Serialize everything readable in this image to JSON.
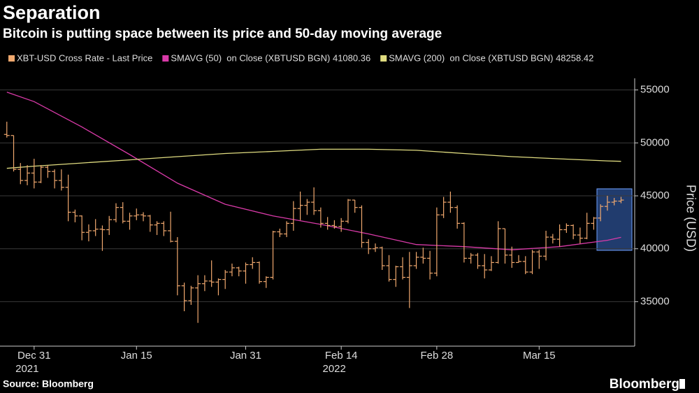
{
  "chart_data": {
    "type": "ohlc",
    "title": "Separation",
    "subtitle": "Bitcoin is putting space between its price and 50-day moving average",
    "source": "Source: Bloomberg",
    "logo": "Bloomberg",
    "y_label": "Price (USD)",
    "xlim": [
      "2021-12-26",
      "2022-03-29"
    ],
    "xticks": [
      {
        "value": "2021-12-31",
        "label": "Dec 31"
      },
      {
        "value": "2022-01-15",
        "label": "Jan 15"
      },
      {
        "value": "2022-01-31",
        "label": "Jan 31"
      },
      {
        "value": "2022-02-14",
        "label": "Feb 14"
      },
      {
        "value": "2022-02-28",
        "label": "Feb 28"
      },
      {
        "value": "2022-03-15",
        "label": "Mar 15"
      }
    ],
    "year_labels": [
      {
        "value": "2021-12-31",
        "label": "2021"
      },
      {
        "value": "2022-02-14",
        "label": "2022"
      }
    ],
    "ylim": [
      30800,
      56100
    ],
    "yticks": [
      35000,
      40000,
      45000,
      50000,
      55000
    ],
    "grid": true,
    "series": [
      {
        "name": "XBT-USD Cross Rate - Last Price",
        "color": "#f0a86e",
        "data": [
          {
            "x": "2021-12-27",
            "open": 50800,
            "high": 52000,
            "low": 50500,
            "close": 50700
          },
          {
            "x": "2021-12-28",
            "open": 50700,
            "high": 50700,
            "low": 47300,
            "close": 47500
          },
          {
            "x": "2021-12-29",
            "open": 47500,
            "high": 48100,
            "low": 46100,
            "close": 46450
          },
          {
            "x": "2021-12-30",
            "open": 46450,
            "high": 47900,
            "low": 46000,
            "close": 47150
          },
          {
            "x": "2021-12-31",
            "open": 47150,
            "high": 48500,
            "low": 45700,
            "close": 46300
          },
          {
            "x": "2022-01-01",
            "open": 46300,
            "high": 47900,
            "low": 46200,
            "close": 47700
          },
          {
            "x": "2022-01-02",
            "open": 47700,
            "high": 47900,
            "low": 46700,
            "close": 47300
          },
          {
            "x": "2022-01-03",
            "open": 47300,
            "high": 47500,
            "low": 45700,
            "close": 46450
          },
          {
            "x": "2022-01-04",
            "open": 46450,
            "high": 47500,
            "low": 45500,
            "close": 45800
          },
          {
            "x": "2022-01-05",
            "open": 45800,
            "high": 47000,
            "low": 42600,
            "close": 43450
          },
          {
            "x": "2022-01-06",
            "open": 43450,
            "high": 43700,
            "low": 42500,
            "close": 43100
          },
          {
            "x": "2022-01-07",
            "open": 43100,
            "high": 43150,
            "low": 40800,
            "close": 41550
          },
          {
            "x": "2022-01-08",
            "open": 41550,
            "high": 42300,
            "low": 40700,
            "close": 41700
          },
          {
            "x": "2022-01-09",
            "open": 41700,
            "high": 42800,
            "low": 41200,
            "close": 41850
          },
          {
            "x": "2022-01-10",
            "open": 41850,
            "high": 42200,
            "low": 39800,
            "close": 41800
          },
          {
            "x": "2022-01-11",
            "open": 41800,
            "high": 43100,
            "low": 41300,
            "close": 42750
          },
          {
            "x": "2022-01-12",
            "open": 42750,
            "high": 44300,
            "low": 42500,
            "close": 43900
          },
          {
            "x": "2022-01-13",
            "open": 43900,
            "high": 44400,
            "low": 42400,
            "close": 42600
          },
          {
            "x": "2022-01-14",
            "open": 42600,
            "high": 43400,
            "low": 41800,
            "close": 43100
          },
          {
            "x": "2022-01-15",
            "open": 43100,
            "high": 43800,
            "low": 42700,
            "close": 43200
          },
          {
            "x": "2022-01-16",
            "open": 43200,
            "high": 43450,
            "low": 42600,
            "close": 43100
          },
          {
            "x": "2022-01-17",
            "open": 43100,
            "high": 43200,
            "low": 41600,
            "close": 42250
          },
          {
            "x": "2022-01-18",
            "open": 42250,
            "high": 42600,
            "low": 41300,
            "close": 42400
          },
          {
            "x": "2022-01-19",
            "open": 42400,
            "high": 42600,
            "low": 41200,
            "close": 41700
          },
          {
            "x": "2022-01-20",
            "open": 41700,
            "high": 43500,
            "low": 40600,
            "close": 40700
          },
          {
            "x": "2022-01-21",
            "open": 40700,
            "high": 41100,
            "low": 35600,
            "close": 36500
          },
          {
            "x": "2022-01-22",
            "open": 36500,
            "high": 36800,
            "low": 34100,
            "close": 35100
          },
          {
            "x": "2022-01-23",
            "open": 35100,
            "high": 36500,
            "low": 34700,
            "close": 36300
          },
          {
            "x": "2022-01-24",
            "open": 36300,
            "high": 37500,
            "low": 33000,
            "close": 36700
          },
          {
            "x": "2022-01-25",
            "open": 36700,
            "high": 37500,
            "low": 36000,
            "close": 36950
          },
          {
            "x": "2022-01-26",
            "open": 36950,
            "high": 38900,
            "low": 36400,
            "close": 36850
          },
          {
            "x": "2022-01-27",
            "open": 36850,
            "high": 37200,
            "low": 35600,
            "close": 37100
          },
          {
            "x": "2022-01-28",
            "open": 37100,
            "high": 38000,
            "low": 36200,
            "close": 37800
          },
          {
            "x": "2022-01-29",
            "open": 37800,
            "high": 38600,
            "low": 37400,
            "close": 38200
          },
          {
            "x": "2022-01-30",
            "open": 38200,
            "high": 38300,
            "low": 37400,
            "close": 37900
          },
          {
            "x": "2022-01-31",
            "open": 37900,
            "high": 38700,
            "low": 36700,
            "close": 38500
          },
          {
            "x": "2022-02-01",
            "open": 38500,
            "high": 39200,
            "low": 38100,
            "close": 38700
          },
          {
            "x": "2022-02-02",
            "open": 38700,
            "high": 38800,
            "low": 36700,
            "close": 36900
          },
          {
            "x": "2022-02-03",
            "open": 36900,
            "high": 37400,
            "low": 36300,
            "close": 37300
          },
          {
            "x": "2022-02-04",
            "open": 37300,
            "high": 41700,
            "low": 37100,
            "close": 41600
          },
          {
            "x": "2022-02-05",
            "open": 41600,
            "high": 41900,
            "low": 41100,
            "close": 41400
          },
          {
            "x": "2022-02-06",
            "open": 41400,
            "high": 42600,
            "low": 41100,
            "close": 42400
          },
          {
            "x": "2022-02-07",
            "open": 42400,
            "high": 44500,
            "low": 41700,
            "close": 43800
          },
          {
            "x": "2022-02-08",
            "open": 43800,
            "high": 45400,
            "low": 42700,
            "close": 44100
          },
          {
            "x": "2022-02-09",
            "open": 44100,
            "high": 44700,
            "low": 43200,
            "close": 44400
          },
          {
            "x": "2022-02-10",
            "open": 44400,
            "high": 45800,
            "low": 43200,
            "close": 43600
          },
          {
            "x": "2022-02-11",
            "open": 43600,
            "high": 43900,
            "low": 42000,
            "close": 42400
          },
          {
            "x": "2022-02-12",
            "open": 42400,
            "high": 43000,
            "low": 41800,
            "close": 42200
          },
          {
            "x": "2022-02-13",
            "open": 42200,
            "high": 42700,
            "low": 41900,
            "close": 42100
          },
          {
            "x": "2022-02-14",
            "open": 42100,
            "high": 42900,
            "low": 41600,
            "close": 42600
          },
          {
            "x": "2022-02-15",
            "open": 42600,
            "high": 44700,
            "low": 42400,
            "close": 44600
          },
          {
            "x": "2022-02-16",
            "open": 44600,
            "high": 44600,
            "low": 43400,
            "close": 43900
          },
          {
            "x": "2022-02-17",
            "open": 43900,
            "high": 44100,
            "low": 40100,
            "close": 40600
          },
          {
            "x": "2022-02-18",
            "open": 40600,
            "high": 40900,
            "low": 39500,
            "close": 40000
          },
          {
            "x": "2022-02-19",
            "open": 40000,
            "high": 40500,
            "low": 39700,
            "close": 40100
          },
          {
            "x": "2022-02-20",
            "open": 40100,
            "high": 40200,
            "low": 38000,
            "close": 38400
          },
          {
            "x": "2022-02-21",
            "open": 38400,
            "high": 39400,
            "low": 36900,
            "close": 37100
          },
          {
            "x": "2022-02-22",
            "open": 37100,
            "high": 38400,
            "low": 36400,
            "close": 38300
          },
          {
            "x": "2022-02-23",
            "open": 38300,
            "high": 39200,
            "low": 37100,
            "close": 37300
          },
          {
            "x": "2022-02-24",
            "open": 37300,
            "high": 39700,
            "low": 34400,
            "close": 38400
          },
          {
            "x": "2022-02-25",
            "open": 38400,
            "high": 39700,
            "low": 38100,
            "close": 39200
          },
          {
            "x": "2022-02-26",
            "open": 39200,
            "high": 40100,
            "low": 38600,
            "close": 39100
          },
          {
            "x": "2022-02-27",
            "open": 39100,
            "high": 39800,
            "low": 37100,
            "close": 37700
          },
          {
            "x": "2022-02-28",
            "open": 37700,
            "high": 43900,
            "low": 37400,
            "close": 43200
          },
          {
            "x": "2022-03-01",
            "open": 43200,
            "high": 44900,
            "low": 42900,
            "close": 44400
          },
          {
            "x": "2022-03-02",
            "open": 44400,
            "high": 45400,
            "low": 43400,
            "close": 43900
          },
          {
            "x": "2022-03-03",
            "open": 43900,
            "high": 44100,
            "low": 41900,
            "close": 42400
          },
          {
            "x": "2022-03-04",
            "open": 42400,
            "high": 42500,
            "low": 38700,
            "close": 39100
          },
          {
            "x": "2022-03-05",
            "open": 39100,
            "high": 39600,
            "low": 38600,
            "close": 39400
          },
          {
            "x": "2022-03-06",
            "open": 39400,
            "high": 39600,
            "low": 38100,
            "close": 38400
          },
          {
            "x": "2022-03-07",
            "open": 38400,
            "high": 39500,
            "low": 37200,
            "close": 38000
          },
          {
            "x": "2022-03-08",
            "open": 38000,
            "high": 39300,
            "low": 37900,
            "close": 38700
          },
          {
            "x": "2022-03-09",
            "open": 38700,
            "high": 42600,
            "low": 38600,
            "close": 41900
          },
          {
            "x": "2022-03-10",
            "open": 41900,
            "high": 41900,
            "low": 38600,
            "close": 39400
          },
          {
            "x": "2022-03-11",
            "open": 39400,
            "high": 40200,
            "low": 38200,
            "close": 38700
          },
          {
            "x": "2022-03-12",
            "open": 38700,
            "high": 39400,
            "low": 38700,
            "close": 38800
          },
          {
            "x": "2022-03-13",
            "open": 38800,
            "high": 39300,
            "low": 37600,
            "close": 37800
          },
          {
            "x": "2022-03-14",
            "open": 37800,
            "high": 39900,
            "low": 37600,
            "close": 39700
          },
          {
            "x": "2022-03-15",
            "open": 39700,
            "high": 39900,
            "low": 38100,
            "close": 39300
          },
          {
            "x": "2022-03-16",
            "open": 39300,
            "high": 41700,
            "low": 38900,
            "close": 41100
          },
          {
            "x": "2022-03-17",
            "open": 41100,
            "high": 41400,
            "low": 40500,
            "close": 40900
          },
          {
            "x": "2022-03-18",
            "open": 40900,
            "high": 42300,
            "low": 40200,
            "close": 41800
          },
          {
            "x": "2022-03-19",
            "open": 41800,
            "high": 42400,
            "low": 41500,
            "close": 42200
          },
          {
            "x": "2022-03-20",
            "open": 42200,
            "high": 42300,
            "low": 40900,
            "close": 41300
          },
          {
            "x": "2022-03-21",
            "open": 41300,
            "high": 42000,
            "low": 40500,
            "close": 41000
          },
          {
            "x": "2022-03-22",
            "open": 41000,
            "high": 43400,
            "low": 40900,
            "close": 42400
          },
          {
            "x": "2022-03-23",
            "open": 42400,
            "high": 43000,
            "low": 41800,
            "close": 42900
          },
          {
            "x": "2022-03-24",
            "open": 42900,
            "high": 44200,
            "low": 42600,
            "close": 44000
          },
          {
            "x": "2022-03-25",
            "open": 44000,
            "high": 45000,
            "low": 43600,
            "close": 44400
          },
          {
            "x": "2022-03-26",
            "open": 44400,
            "high": 44800,
            "low": 44100,
            "close": 44500
          },
          {
            "x": "2022-03-27",
            "open": 44500,
            "high": 44900,
            "low": 44300,
            "close": 44600
          }
        ]
      }
    ],
    "lines": [
      {
        "name": "SMAVG (50)  on Close (XBTUSD BGN) 41080.36",
        "color": "#d93aa8",
        "x": [
          "2021-12-27",
          "2021-12-31",
          "2022-01-07",
          "2022-01-14",
          "2022-01-21",
          "2022-01-28",
          "2022-02-04",
          "2022-02-11",
          "2022-02-18",
          "2022-02-25",
          "2022-03-04",
          "2022-03-11",
          "2022-03-18",
          "2022-03-25",
          "2022-03-27"
        ],
        "values": [
          54800,
          53900,
          51500,
          48900,
          46200,
          44200,
          43100,
          42300,
          41400,
          40400,
          40200,
          39900,
          40200,
          40800,
          41080.36
        ]
      },
      {
        "name": "SMAVG (200)  on Close (XBTUSD BGN) 48258.42",
        "color": "#e0dc80",
        "x": [
          "2021-12-27",
          "2021-12-31",
          "2022-01-07",
          "2022-01-14",
          "2022-01-21",
          "2022-01-28",
          "2022-02-04",
          "2022-02-11",
          "2022-02-18",
          "2022-02-25",
          "2022-03-04",
          "2022-03-11",
          "2022-03-18",
          "2022-03-25",
          "2022-03-27"
        ],
        "values": [
          47600,
          47800,
          48100,
          48400,
          48700,
          49000,
          49200,
          49400,
          49400,
          49300,
          49000,
          48700,
          48500,
          48300,
          48258.42
        ]
      }
    ]
  }
}
